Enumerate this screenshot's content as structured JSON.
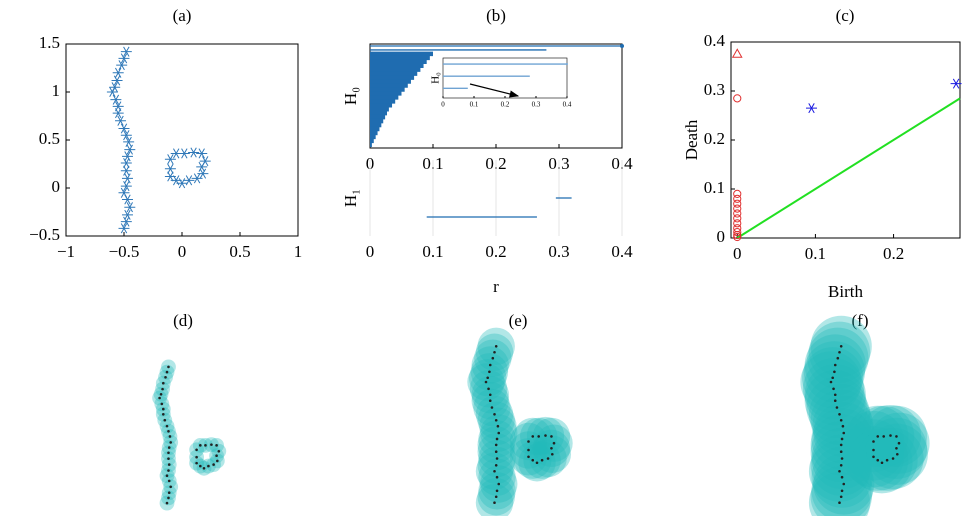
{
  "chart_data": [
    {
      "type": "scatter",
      "title": "(a)",
      "color": "#2f78b8",
      "marker": "asterisk",
      "x": [
        -0.48,
        -0.5,
        -0.52,
        -0.55,
        -0.56,
        -0.58,
        -0.6,
        -0.57,
        -0.55,
        -0.55,
        -0.53,
        -0.5,
        -0.48,
        -0.46,
        -0.45,
        -0.47,
        -0.48,
        -0.48,
        -0.47,
        -0.48,
        -0.5,
        -0.47,
        -0.45,
        -0.47,
        -0.48,
        -0.5,
        0.2,
        0.17,
        0.1,
        0.02,
        -0.05,
        -0.1,
        -0.1,
        -0.1,
        -0.05,
        0.0,
        0.06,
        0.13,
        0.18,
        0.17
      ],
      "y": [
        1.42,
        1.35,
        1.28,
        1.2,
        1.12,
        1.05,
        1.0,
        0.92,
        0.85,
        0.78,
        0.7,
        0.62,
        0.55,
        0.48,
        0.4,
        0.33,
        0.26,
        0.18,
        0.1,
        0.02,
        -0.05,
        -0.12,
        -0.2,
        -0.28,
        -0.35,
        -0.42,
        0.28,
        0.36,
        0.37,
        0.36,
        0.36,
        0.3,
        0.2,
        0.12,
        0.08,
        0.05,
        0.08,
        0.1,
        0.15,
        0.22
      ],
      "xlim": [
        -1,
        1
      ],
      "ylim": [
        -0.5,
        1.5
      ],
      "xticks": [
        {
          "value": -1,
          "label": "−1"
        },
        {
          "value": -0.5,
          "label": "−0.5"
        },
        0,
        0.5,
        1
      ],
      "yticks": [
        {
          "value": -0.5,
          "label": "−0.5"
        },
        0,
        0.5,
        1,
        1.5
      ]
    },
    {
      "type": "barcode",
      "title": "(b)",
      "ylabel": "H₀",
      "color": "#1f6cb0",
      "endpoint_marker": true,
      "intervals": [
        [
          0,
          0.4
        ],
        [
          0,
          0.28
        ],
        [
          0,
          0.1
        ],
        [
          0,
          0.095
        ],
        [
          0,
          0.09
        ],
        [
          0,
          0.085
        ],
        [
          0,
          0.08
        ],
        [
          0,
          0.075
        ],
        [
          0,
          0.07
        ],
        [
          0,
          0.065
        ],
        [
          0,
          0.06
        ],
        [
          0,
          0.055
        ],
        [
          0,
          0.05
        ],
        [
          0,
          0.045
        ],
        [
          0,
          0.04
        ],
        [
          0,
          0.035
        ],
        [
          0,
          0.03
        ],
        [
          0,
          0.027
        ],
        [
          0,
          0.024
        ],
        [
          0,
          0.021
        ],
        [
          0,
          0.018
        ],
        [
          0,
          0.015
        ],
        [
          0,
          0.012
        ],
        [
          0,
          0.009
        ],
        [
          0,
          0.006
        ],
        [
          0,
          0.003
        ]
      ],
      "xlim": [
        0,
        0.4
      ],
      "xticks": [
        0,
        0.1,
        0.2,
        0.3,
        0.4
      ]
    },
    {
      "type": "barcode",
      "ylabel": "H₀",
      "color": "#6fa3d3",
      "endpoint_marker": true,
      "intervals": [
        [
          0,
          0.4
        ],
        [
          0,
          0.28
        ],
        [
          0,
          0.08
        ]
      ],
      "xlim": [
        0,
        0.4
      ],
      "xticks": [
        0,
        0.1,
        0.2,
        0.3,
        0.4
      ]
    },
    {
      "type": "barcode",
      "ylabel": "H₁",
      "xlabel": "r",
      "color": "#1f6cb0",
      "grid": true,
      "intervals": [
        [
          0.09,
          0.265
        ],
        [
          0.295,
          0.32
        ]
      ],
      "xlim": [
        0,
        0.4
      ],
      "xticks": [
        0,
        0.1,
        0.2,
        0.3,
        0.4
      ]
    },
    {
      "type": "persistence",
      "title": "(c)",
      "xlabel": "Birth",
      "ylabel": "Death",
      "diagonal_color": "#22e022",
      "series": [
        {
          "marker": "circle",
          "color": "#e03030",
          "x": [
            0,
            0,
            0,
            0,
            0,
            0,
            0,
            0,
            0,
            0,
            0,
            0
          ],
          "y": [
            0.285,
            0.09,
            0.08,
            0.07,
            0.06,
            0.05,
            0.04,
            0.03,
            0.02,
            0.012,
            0.006,
            0.002
          ]
        },
        {
          "marker": "triangle",
          "color": "#e03030",
          "x": [
            0
          ],
          "y": [
            0.375
          ]
        },
        {
          "marker": "asterisk",
          "color": "#1a1ae0",
          "x": [
            0.095,
            0.28
          ],
          "y": [
            0.265,
            0.315
          ]
        }
      ],
      "xlim": [
        -0.008,
        0.285
      ],
      "ylim": [
        0,
        0.4
      ],
      "xticks": [
        0,
        0.1,
        0.2
      ],
      "yticks": [
        0,
        0.1,
        0.2,
        0.3,
        0.4
      ]
    },
    {
      "type": "balls",
      "title": "(d)",
      "radius": 0.1,
      "color": "#22baba"
    },
    {
      "type": "balls",
      "title": "(e)",
      "radius": 0.22,
      "color": "#22baba"
    },
    {
      "type": "balls",
      "title": "(f)",
      "radius": 0.36,
      "color": "#22baba"
    }
  ]
}
